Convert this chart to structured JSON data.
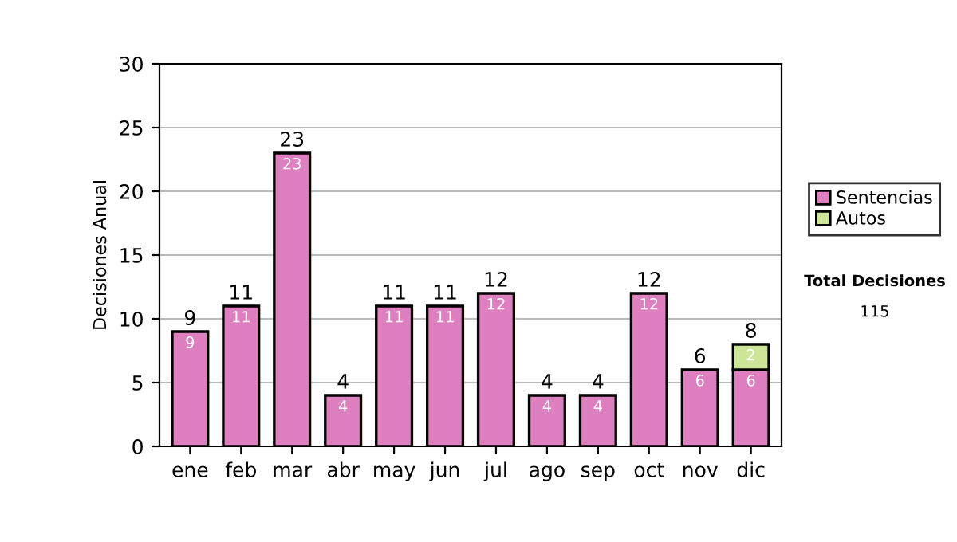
{
  "chart_data": {
    "type": "bar",
    "ylabel": "Decisiones Anual",
    "categories": [
      "ene",
      "feb",
      "mar",
      "abr",
      "may",
      "jun",
      "jul",
      "ago",
      "sep",
      "oct",
      "nov",
      "dic"
    ],
    "series": [
      {
        "name": "Sentencias",
        "color": "#de7fc0",
        "values": [
          9,
          11,
          23,
          4,
          11,
          11,
          12,
          4,
          4,
          12,
          6,
          6
        ]
      },
      {
        "name": "Autos",
        "color": "#cde597",
        "values": [
          null,
          null,
          null,
          null,
          null,
          null,
          null,
          null,
          null,
          null,
          null,
          2
        ]
      }
    ],
    "stacked": true,
    "data_labels": true,
    "totals": [
      "9",
      "11",
      "23",
      "4",
      "11",
      "11",
      "12",
      "4",
      "4",
      "12",
      "6",
      "8"
    ],
    "ylim": [
      0,
      30
    ],
    "yticks": [
      0,
      5,
      10,
      15,
      20,
      25,
      30
    ],
    "grid": "y",
    "legend": "right",
    "annotations": [
      "Total Decisiones",
      "115"
    ]
  }
}
